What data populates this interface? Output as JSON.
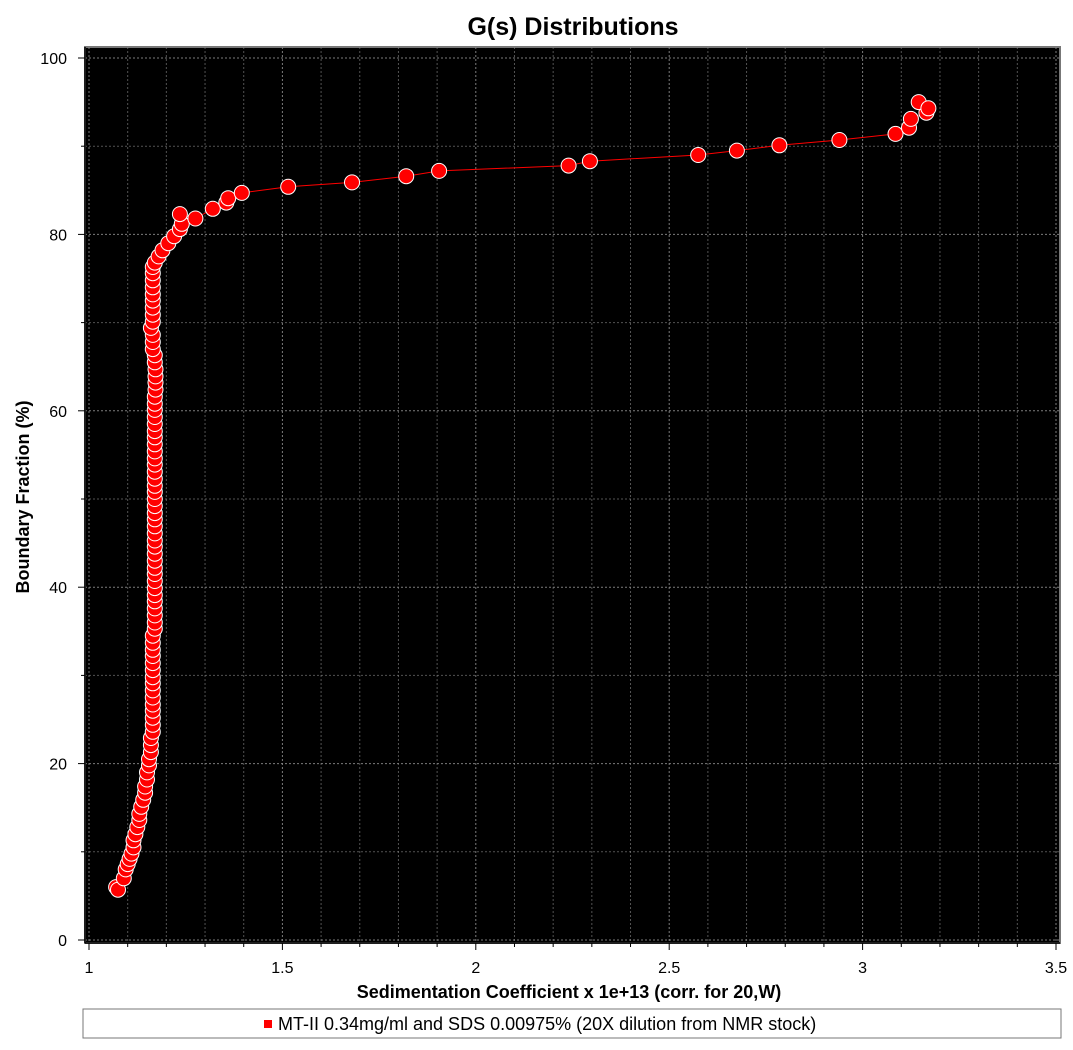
{
  "chart_data": {
    "type": "scatter",
    "title": "G(s) Distributions",
    "xlabel": "Sedimentation Coefficient x 1e+13 (corr. for 20,W)",
    "ylabel": "Boundary Fraction (%)",
    "xlim": [
      1,
      3.5
    ],
    "ylim": [
      0,
      100
    ],
    "x_ticks": [
      1,
      1.5,
      2,
      2.5,
      3,
      3.5
    ],
    "x_tick_labels": [
      "1",
      "1.5",
      "2",
      "2.5",
      "3",
      "3.5"
    ],
    "y_ticks": [
      0,
      20,
      40,
      60,
      80,
      100
    ],
    "y_tick_labels": [
      "0",
      "20",
      "40",
      "60",
      "80",
      "100"
    ],
    "grid": true,
    "legend_position": "bottom",
    "colors": {
      "plot_background": "#000000",
      "grid": "#8a8a8a",
      "series": "#ff0000",
      "marker_edge": "#ffffff"
    },
    "series": [
      {
        "name": "MT-II 0.34mg/ml and SDS 0.00975% (20X dilution from NMR stock)",
        "connected": true,
        "marker": "circle",
        "points": [
          [
            1.07,
            6.0
          ],
          [
            1.075,
            5.7
          ],
          [
            1.09,
            7.0
          ],
          [
            1.095,
            8.0
          ],
          [
            1.1,
            8.6
          ],
          [
            1.105,
            9.2
          ],
          [
            1.11,
            9.8
          ],
          [
            1.115,
            10.5
          ],
          [
            1.115,
            11.3
          ],
          [
            1.12,
            12.0
          ],
          [
            1.125,
            12.8
          ],
          [
            1.13,
            13.6
          ],
          [
            1.13,
            14.3
          ],
          [
            1.135,
            15.1
          ],
          [
            1.14,
            15.9
          ],
          [
            1.145,
            16.7
          ],
          [
            1.145,
            17.4
          ],
          [
            1.15,
            18.2
          ],
          [
            1.15,
            19.0
          ],
          [
            1.155,
            19.8
          ],
          [
            1.155,
            20.5
          ],
          [
            1.16,
            21.3
          ],
          [
            1.16,
            22.1
          ],
          [
            1.16,
            22.9
          ],
          [
            1.165,
            23.6
          ],
          [
            1.165,
            24.4
          ],
          [
            1.165,
            25.2
          ],
          [
            1.165,
            26.0
          ],
          [
            1.165,
            26.7
          ],
          [
            1.165,
            27.5
          ],
          [
            1.165,
            28.3
          ],
          [
            1.165,
            29.1
          ],
          [
            1.165,
            29.8
          ],
          [
            1.165,
            30.6
          ],
          [
            1.165,
            31.4
          ],
          [
            1.165,
            32.2
          ],
          [
            1.165,
            32.9
          ],
          [
            1.165,
            33.7
          ],
          [
            1.165,
            34.5
          ],
          [
            1.17,
            35.3
          ],
          [
            1.17,
            36.0
          ],
          [
            1.17,
            36.8
          ],
          [
            1.17,
            37.6
          ],
          [
            1.17,
            38.4
          ],
          [
            1.17,
            39.1
          ],
          [
            1.17,
            39.9
          ],
          [
            1.17,
            40.7
          ],
          [
            1.17,
            41.5
          ],
          [
            1.17,
            42.2
          ],
          [
            1.17,
            43.0
          ],
          [
            1.17,
            43.8
          ],
          [
            1.17,
            44.6
          ],
          [
            1.17,
            45.3
          ],
          [
            1.17,
            46.1
          ],
          [
            1.17,
            46.9
          ],
          [
            1.17,
            47.7
          ],
          [
            1.17,
            48.4
          ],
          [
            1.17,
            49.2
          ],
          [
            1.17,
            50.0
          ],
          [
            1.17,
            50.8
          ],
          [
            1.17,
            51.5
          ],
          [
            1.17,
            52.3
          ],
          [
            1.17,
            53.1
          ],
          [
            1.17,
            53.9
          ],
          [
            1.17,
            54.6
          ],
          [
            1.17,
            55.4
          ],
          [
            1.17,
            56.2
          ],
          [
            1.17,
            57.0
          ],
          [
            1.17,
            57.7
          ],
          [
            1.17,
            58.5
          ],
          [
            1.17,
            59.3
          ],
          [
            1.17,
            60.1
          ],
          [
            1.17,
            60.8
          ],
          [
            1.17,
            61.6
          ],
          [
            1.172,
            62.4
          ],
          [
            1.172,
            63.2
          ],
          [
            1.172,
            63.9
          ],
          [
            1.172,
            64.7
          ],
          [
            1.17,
            65.5
          ],
          [
            1.17,
            66.3
          ],
          [
            1.165,
            67.0
          ],
          [
            1.165,
            67.8
          ],
          [
            1.165,
            68.6
          ],
          [
            1.16,
            69.4
          ],
          [
            1.165,
            70.1
          ],
          [
            1.165,
            70.9
          ],
          [
            1.165,
            71.7
          ],
          [
            1.165,
            72.5
          ],
          [
            1.165,
            73.2
          ],
          [
            1.165,
            74.0
          ],
          [
            1.165,
            74.8
          ],
          [
            1.165,
            75.6
          ],
          [
            1.165,
            76.3
          ],
          [
            1.17,
            76.8
          ],
          [
            1.18,
            77.5
          ],
          [
            1.19,
            78.2
          ],
          [
            1.205,
            79.0
          ],
          [
            1.22,
            79.8
          ],
          [
            1.235,
            80.6
          ],
          [
            1.24,
            81.2
          ],
          [
            1.235,
            82.3
          ],
          [
            1.275,
            81.8
          ],
          [
            1.32,
            82.9
          ],
          [
            1.355,
            83.6
          ],
          [
            1.36,
            84.1
          ],
          [
            1.395,
            84.7
          ],
          [
            1.515,
            85.4
          ],
          [
            1.68,
            85.9
          ],
          [
            1.82,
            86.6
          ],
          [
            1.905,
            87.2
          ],
          [
            2.24,
            87.8
          ],
          [
            2.295,
            88.3
          ],
          [
            2.575,
            89.0
          ],
          [
            2.675,
            89.5
          ],
          [
            2.785,
            90.1
          ],
          [
            2.94,
            90.7
          ],
          [
            3.085,
            91.4
          ],
          [
            3.12,
            92.1
          ],
          [
            3.125,
            93.1
          ],
          [
            3.165,
            93.8
          ],
          [
            3.145,
            95.0
          ],
          [
            3.17,
            94.3
          ]
        ]
      }
    ]
  }
}
